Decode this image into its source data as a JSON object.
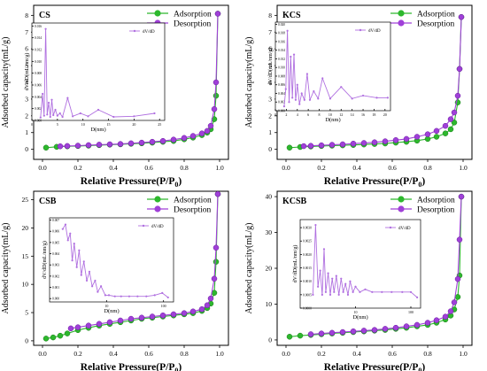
{
  "colors": {
    "adsorption": "#2db82d",
    "desorption": "#a040d8",
    "psd": "#b070e0"
  },
  "chart_data": [
    {
      "type": "line",
      "panel_label": "CS",
      "xlabel_main": "Relative Pressure(P/P",
      "xlabel_sub": "0",
      "xlabel_tail": ")",
      "ylabel": "Adsorbed capacity(mL/g)",
      "xlim": [
        -0.05,
        1.05
      ],
      "ylim": [
        -0.6,
        8.6
      ],
      "xticks": [
        "0.0",
        "0.2",
        "0.4",
        "0.6",
        "0.8",
        "1.0"
      ],
      "xtick_vals": [
        0,
        0.2,
        0.4,
        0.6,
        0.8,
        1.0
      ],
      "yticks": [
        "0",
        "1",
        "2",
        "3",
        "4",
        "5",
        "6",
        "7",
        "8"
      ],
      "ytick_vals": [
        0,
        1,
        2,
        3,
        4,
        5,
        6,
        7,
        8
      ],
      "legend": [
        "Adsorption",
        "Desorption"
      ],
      "series": [
        {
          "name": "Adsorption",
          "x": [
            0.02,
            0.08,
            0.14,
            0.2,
            0.26,
            0.32,
            0.38,
            0.44,
            0.5,
            0.56,
            0.62,
            0.68,
            0.74,
            0.8,
            0.85,
            0.9,
            0.93,
            0.95,
            0.97,
            0.98,
            0.99
          ],
          "y": [
            0.1,
            0.15,
            0.18,
            0.2,
            0.22,
            0.25,
            0.28,
            0.3,
            0.33,
            0.36,
            0.4,
            0.45,
            0.5,
            0.6,
            0.7,
            0.85,
            1.0,
            1.2,
            1.8,
            3.2,
            8.1
          ]
        },
        {
          "name": "Desorption",
          "x": [
            0.99,
            0.98,
            0.97,
            0.95,
            0.93,
            0.9,
            0.85,
            0.8,
            0.74,
            0.68,
            0.62,
            0.56,
            0.5,
            0.44,
            0.38,
            0.32,
            0.26,
            0.2,
            0.14,
            0.1
          ],
          "y": [
            8.1,
            4.0,
            2.4,
            1.4,
            1.1,
            0.95,
            0.8,
            0.68,
            0.58,
            0.5,
            0.45,
            0.4,
            0.36,
            0.32,
            0.3,
            0.28,
            0.25,
            0.22,
            0.2,
            0.18
          ]
        }
      ],
      "inset": {
        "legend": "dV/dD",
        "xlabel": "D(nm)",
        "ylabel": "dV/dD(mL/nm/g)",
        "xlim": [
          0,
          26
        ],
        "ylim": [
          0,
          0.0165
        ],
        "xticks": [
          "0",
          "5",
          "10",
          "15",
          "20",
          "25"
        ],
        "xtick_vals": [
          0,
          5,
          10,
          15,
          20,
          25
        ],
        "yticks": [
          "0.000",
          "0.002",
          "0.004",
          "0.006",
          "0.008",
          "0.010",
          "0.012",
          "0.014",
          "0.016"
        ],
        "ytick_vals": [
          0,
          0.002,
          0.004,
          0.006,
          0.008,
          0.01,
          0.012,
          0.014,
          0.016
        ],
        "x": [
          1.7,
          2.1,
          2.4,
          2.7,
          3.0,
          3.3,
          3.6,
          3.9,
          4.2,
          4.6,
          5.0,
          5.5,
          6.0,
          7.0,
          8.0,
          9.5,
          11,
          13,
          16,
          20,
          24
        ],
        "y": [
          0.0005,
          0.0045,
          0.0008,
          0.0155,
          0.001,
          0.003,
          0.0006,
          0.0035,
          0.0009,
          0.0018,
          0.0008,
          0.0012,
          0.0006,
          0.0038,
          0.0007,
          0.0012,
          0.0007,
          0.0018,
          0.0006,
          0.0007,
          0.0012
        ]
      }
    },
    {
      "type": "line",
      "panel_label": "KCS",
      "xlabel_main": "Relative Pressure(P/P",
      "xlabel_sub": "0",
      "xlabel_tail": ")",
      "ylabel": "Adsorbed capacity(mL/g)",
      "xlim": [
        -0.05,
        1.05
      ],
      "ylim": [
        -0.6,
        8.6
      ],
      "xticks": [
        "0.0",
        "0.2",
        "0.4",
        "0.6",
        "0.8",
        "1.0"
      ],
      "xtick_vals": [
        0,
        0.2,
        0.4,
        0.6,
        0.8,
        1.0
      ],
      "yticks": [
        "0",
        "1",
        "2",
        "3",
        "4",
        "5",
        "6",
        "7",
        "8"
      ],
      "ytick_vals": [
        0,
        1,
        2,
        3,
        4,
        5,
        6,
        7,
        8
      ],
      "legend": [
        "Adsorption",
        "Desorption"
      ],
      "series": [
        {
          "name": "Adsorption",
          "x": [
            0.02,
            0.08,
            0.14,
            0.2,
            0.26,
            0.32,
            0.38,
            0.44,
            0.5,
            0.56,
            0.62,
            0.68,
            0.74,
            0.8,
            0.85,
            0.9,
            0.93,
            0.95,
            0.97,
            0.98,
            0.99
          ],
          "y": [
            0.1,
            0.14,
            0.17,
            0.2,
            0.22,
            0.24,
            0.26,
            0.29,
            0.32,
            0.35,
            0.4,
            0.45,
            0.52,
            0.62,
            0.75,
            0.95,
            1.2,
            1.6,
            2.8,
            4.8,
            7.9
          ]
        },
        {
          "name": "Desorption",
          "x": [
            0.99,
            0.98,
            0.97,
            0.95,
            0.93,
            0.9,
            0.85,
            0.8,
            0.74,
            0.68,
            0.62,
            0.56,
            0.5,
            0.44,
            0.38,
            0.32,
            0.26,
            0.2,
            0.14,
            0.1
          ],
          "y": [
            7.9,
            4.8,
            3.2,
            2.2,
            1.8,
            1.4,
            1.1,
            0.9,
            0.75,
            0.62,
            0.55,
            0.48,
            0.42,
            0.38,
            0.34,
            0.3,
            0.27,
            0.24,
            0.21,
            0.19
          ]
        }
      ],
      "inset": {
        "legend": "dV/dD",
        "xlabel": "D(nm)",
        "ylabel": "dV/dD(mL/nm/g)",
        "xlim": [
          0,
          21
        ],
        "ylim": [
          0,
          0.0205
        ],
        "xticks": [
          "0",
          "2",
          "4",
          "6",
          "8",
          "10",
          "12",
          "14",
          "16",
          "18",
          "20"
        ],
        "xtick_vals": [
          0,
          2,
          4,
          6,
          8,
          10,
          12,
          14,
          16,
          18,
          20
        ],
        "yticks": [
          "0.000",
          "0.002",
          "0.004",
          "0.006",
          "0.008",
          "0.010",
          "0.012",
          "0.014",
          "0.016",
          "0.018",
          "0.020"
        ],
        "ytick_vals": [
          0,
          0.002,
          0.004,
          0.006,
          0.008,
          0.01,
          0.012,
          0.014,
          0.016,
          0.018,
          0.02
        ],
        "x": [
          1.6,
          1.9,
          2.2,
          2.5,
          2.8,
          3.1,
          3.4,
          3.7,
          4.0,
          4.4,
          4.8,
          5.3,
          5.8,
          6.3,
          7.0,
          7.8,
          8.6,
          10,
          12,
          14,
          16,
          18.5,
          20.5
        ],
        "y": [
          0.001,
          0.005,
          0.0185,
          0.002,
          0.0125,
          0.003,
          0.013,
          0.0025,
          0.006,
          0.0015,
          0.004,
          0.0025,
          0.0085,
          0.0025,
          0.0045,
          0.0028,
          0.0075,
          0.0028,
          0.0055,
          0.0028,
          0.0035,
          0.003,
          0.003
        ]
      }
    },
    {
      "type": "line",
      "panel_label": "CSB",
      "xlabel_main": "Relative Pressure(P/P",
      "xlabel_sub": "0",
      "xlabel_tail": ")",
      "ylabel": "Adsorbed capacity(mL/g)",
      "xlim": [
        -0.05,
        1.05
      ],
      "ylim": [
        -0.8,
        26.5
      ],
      "xticks": [
        "0.0",
        "0.2",
        "0.4",
        "0.6",
        "0.8",
        "1.0"
      ],
      "xtick_vals": [
        0,
        0.2,
        0.4,
        0.6,
        0.8,
        1.0
      ],
      "yticks": [
        "0",
        "5",
        "10",
        "15",
        "20",
        "25"
      ],
      "ytick_vals": [
        0,
        5,
        10,
        15,
        20,
        25
      ],
      "legend": [
        "Adsorption",
        "Desorption"
      ],
      "series": [
        {
          "name": "Adsorption",
          "x": [
            0.02,
            0.06,
            0.1,
            0.14,
            0.2,
            0.26,
            0.32,
            0.38,
            0.44,
            0.5,
            0.56,
            0.62,
            0.68,
            0.74,
            0.8,
            0.85,
            0.9,
            0.93,
            0.95,
            0.97,
            0.98,
            0.99
          ],
          "y": [
            0.4,
            0.6,
            0.9,
            1.3,
            1.9,
            2.3,
            2.7,
            3.0,
            3.3,
            3.6,
            3.9,
            4.1,
            4.3,
            4.5,
            4.7,
            4.9,
            5.3,
            5.8,
            6.6,
            8.5,
            14,
            26
          ]
        },
        {
          "name": "Desorption",
          "x": [
            0.99,
            0.98,
            0.97,
            0.95,
            0.93,
            0.9,
            0.85,
            0.8,
            0.74,
            0.68,
            0.62,
            0.56,
            0.5,
            0.44,
            0.38,
            0.32,
            0.26,
            0.2,
            0.16
          ],
          "y": [
            26,
            16.5,
            11,
            7.5,
            6.3,
            5.6,
            5.2,
            4.9,
            4.7,
            4.5,
            4.3,
            4.1,
            3.9,
            3.6,
            3.3,
            3.0,
            2.7,
            2.4,
            2.2
          ]
        }
      ],
      "inset": {
        "legend": "dV/dD",
        "xlabel": "D(nm)",
        "ylabel": "dV/dD(mL/nm/g)",
        "xlim": [
          1,
          150
        ],
        "xscale": "log",
        "ylim": [
          -0.0003,
          0.0072
        ],
        "xticks": [
          "10",
          "100"
        ],
        "xtick_vals": [
          10,
          100
        ],
        "yticks": [
          "0.000",
          "0.001",
          "0.002",
          "0.003",
          "0.004",
          "0.005",
          "0.006",
          "0.007"
        ],
        "ytick_vals": [
          0,
          0.001,
          0.002,
          0.003,
          0.004,
          0.005,
          0.006,
          0.007
        ],
        "x": [
          1.7,
          1.9,
          2.1,
          2.3,
          2.5,
          2.7,
          3.0,
          3.3,
          3.6,
          4.0,
          4.5,
          5.0,
          5.6,
          6.3,
          7.0,
          8.0,
          9.5,
          11,
          14,
          18,
          25,
          35,
          50,
          70,
          95,
          120
        ],
        "y": [
          0.0062,
          0.0066,
          0.0052,
          0.0058,
          0.0034,
          0.0049,
          0.0028,
          0.0043,
          0.0021,
          0.0033,
          0.0016,
          0.0024,
          0.0011,
          0.0016,
          0.0006,
          0.0011,
          0.0003,
          0.0003,
          0.0002,
          0.0002,
          0.0002,
          0.0002,
          0.0002,
          0.0003,
          0.0005,
          0.0001
        ]
      }
    },
    {
      "type": "line",
      "panel_label": "KCSB",
      "xlabel_main": "Relative Pressure(P/P",
      "xlabel_sub": "0",
      "xlabel_tail": ")",
      "ylabel": "Adsorbed capacity(mL/g)",
      "xlim": [
        -0.05,
        1.05
      ],
      "ylim": [
        -1.5,
        41.5
      ],
      "xticks": [
        "0.0",
        "0.2",
        "0.4",
        "0.6",
        "0.8",
        "1.0"
      ],
      "xtick_vals": [
        0,
        0.2,
        0.4,
        0.6,
        0.8,
        1.0
      ],
      "yticks": [
        "0",
        "10",
        "20",
        "30",
        "40"
      ],
      "ytick_vals": [
        0,
        10,
        20,
        30,
        40
      ],
      "legend": [
        "Adsorption",
        "Desorption"
      ],
      "series": [
        {
          "name": "Adsorption",
          "x": [
            0.02,
            0.08,
            0.14,
            0.2,
            0.26,
            0.32,
            0.38,
            0.44,
            0.5,
            0.56,
            0.62,
            0.68,
            0.74,
            0.8,
            0.85,
            0.9,
            0.93,
            0.95,
            0.97,
            0.98,
            0.99
          ],
          "y": [
            0.9,
            1.2,
            1.4,
            1.6,
            1.8,
            2.0,
            2.2,
            2.4,
            2.6,
            2.8,
            3.1,
            3.4,
            3.8,
            4.2,
            4.8,
            5.7,
            6.8,
            8.5,
            12,
            18,
            40
          ]
        },
        {
          "name": "Desorption",
          "x": [
            0.99,
            0.98,
            0.97,
            0.95,
            0.93,
            0.9,
            0.85,
            0.8,
            0.74,
            0.68,
            0.62,
            0.56,
            0.5,
            0.44,
            0.38,
            0.32,
            0.26,
            0.2,
            0.14
          ],
          "y": [
            40,
            28,
            17,
            10.5,
            8.0,
            6.5,
            5.5,
            4.8,
            4.2,
            3.8,
            3.4,
            3.1,
            2.8,
            2.6,
            2.4,
            2.2,
            2.0,
            1.8,
            1.6
          ]
        }
      ],
      "inset": {
        "legend": "dV/dD",
        "xlabel": "D(nm)",
        "ylabel": "dV/dD(mL/nm/g)",
        "xlim": [
          1,
          150
        ],
        "xscale": "log",
        "ylim": [
          0,
          0.0033
        ],
        "xticks": [
          "10",
          "100"
        ],
        "xtick_vals": [
          10,
          100
        ],
        "yticks": [
          "0.0000",
          "0.0005",
          "0.0010",
          "0.0015",
          "0.0020",
          "0.0025",
          "0.0030"
        ],
        "ytick_vals": [
          0,
          0.0005,
          0.001,
          0.0015,
          0.002,
          0.0025,
          0.003
        ],
        "x": [
          1.7,
          1.9,
          2.1,
          2.3,
          2.5,
          2.7,
          2.9,
          3.2,
          3.5,
          3.8,
          4.1,
          4.5,
          5.0,
          5.5,
          6.0,
          6.6,
          7.3,
          8.0,
          9.0,
          10,
          12,
          15,
          20,
          30,
          45,
          70,
          100,
          130
        ],
        "y": [
          0.0005,
          0.0031,
          0.0008,
          0.0014,
          0.0005,
          0.0022,
          0.0006,
          0.0013,
          0.0005,
          0.0011,
          0.0006,
          0.0012,
          0.0005,
          0.0011,
          0.0006,
          0.0009,
          0.0005,
          0.001,
          0.0006,
          0.0008,
          0.0006,
          0.0007,
          0.0006,
          0.0006,
          0.0006,
          0.0006,
          0.0006,
          0.0004
        ]
      }
    }
  ]
}
